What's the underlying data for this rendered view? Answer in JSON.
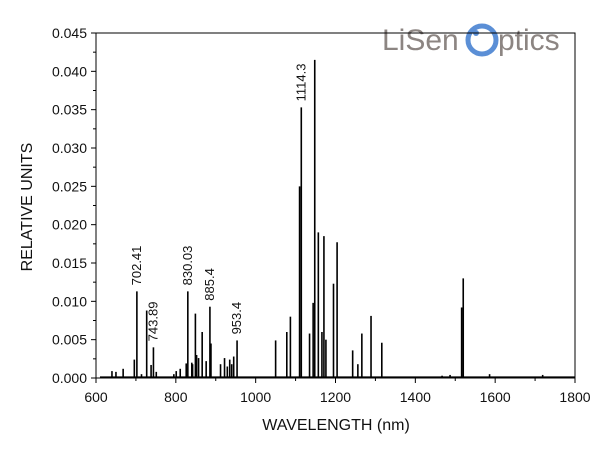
{
  "logo": {
    "text_left": "LiSen",
    "text_right": "ptics",
    "text_color": "#8c8582",
    "accent_color": "#5b8fd6"
  },
  "chart_data": {
    "type": "line",
    "xlabel": "WAVELENGTH (nm)",
    "ylabel": "RELATIVE UNITS",
    "xlim": [
      600,
      1800
    ],
    "ylim": [
      0,
      0.045
    ],
    "x_ticks": [
      600,
      800,
      1000,
      1200,
      1400,
      1600,
      1800
    ],
    "y_ticks": [
      0.0,
      0.005,
      0.01,
      0.015,
      0.02,
      0.025,
      0.03,
      0.035,
      0.04,
      0.045
    ],
    "y_tick_labels": [
      "0.000",
      "0.005",
      "0.010",
      "0.015",
      "0.020",
      "0.025",
      "0.030",
      "0.035",
      "0.040",
      "0.045"
    ],
    "grid": false,
    "line_color": "#000000",
    "peaks": [
      {
        "x": 640,
        "y": 0.0009
      },
      {
        "x": 650,
        "y": 0.0008
      },
      {
        "x": 668,
        "y": 0.0012
      },
      {
        "x": 696,
        "y": 0.0024
      },
      {
        "x": 702.41,
        "y": 0.0113
      },
      {
        "x": 714,
        "y": 0.0005
      },
      {
        "x": 727,
        "y": 0.0088
      },
      {
        "x": 738,
        "y": 0.0017
      },
      {
        "x": 743.89,
        "y": 0.004
      },
      {
        "x": 751,
        "y": 0.0008
      },
      {
        "x": 795,
        "y": 0.0005
      },
      {
        "x": 801,
        "y": 0.0009
      },
      {
        "x": 811,
        "y": 0.0012
      },
      {
        "x": 826,
        "y": 0.0019
      },
      {
        "x": 830.03,
        "y": 0.0113
      },
      {
        "x": 840,
        "y": 0.002
      },
      {
        "x": 842,
        "y": 0.0018
      },
      {
        "x": 849,
        "y": 0.0084
      },
      {
        "x": 852,
        "y": 0.003
      },
      {
        "x": 857,
        "y": 0.0026
      },
      {
        "x": 866,
        "y": 0.006
      },
      {
        "x": 876,
        "y": 0.0022
      },
      {
        "x": 885.4,
        "y": 0.0093
      },
      {
        "x": 888,
        "y": 0.0045
      },
      {
        "x": 912,
        "y": 0.0018
      },
      {
        "x": 922,
        "y": 0.0026
      },
      {
        "x": 929,
        "y": 0.0015
      },
      {
        "x": 935,
        "y": 0.0024
      },
      {
        "x": 940,
        "y": 0.0018
      },
      {
        "x": 945,
        "y": 0.0028
      },
      {
        "x": 953.4,
        "y": 0.0049
      },
      {
        "x": 1050,
        "y": 0.0049
      },
      {
        "x": 1078,
        "y": 0.006
      },
      {
        "x": 1087,
        "y": 0.008
      },
      {
        "x": 1110,
        "y": 0.025
      },
      {
        "x": 1114.3,
        "y": 0.0353
      },
      {
        "x": 1135,
        "y": 0.0058
      },
      {
        "x": 1144,
        "y": 0.0098
      },
      {
        "x": 1148,
        "y": 0.0415
      },
      {
        "x": 1157,
        "y": 0.019
      },
      {
        "x": 1166,
        "y": 0.006
      },
      {
        "x": 1171,
        "y": 0.0185
      },
      {
        "x": 1176,
        "y": 0.005
      },
      {
        "x": 1195,
        "y": 0.0123
      },
      {
        "x": 1204,
        "y": 0.0177
      },
      {
        "x": 1243,
        "y": 0.0036
      },
      {
        "x": 1256,
        "y": 0.0018
      },
      {
        "x": 1266,
        "y": 0.0058
      },
      {
        "x": 1289,
        "y": 0.0081
      },
      {
        "x": 1316,
        "y": 0.0046
      },
      {
        "x": 1467,
        "y": 0.0003
      },
      {
        "x": 1487,
        "y": 0.0004
      },
      {
        "x": 1516,
        "y": 0.0092
      },
      {
        "x": 1520,
        "y": 0.013
      },
      {
        "x": 1586,
        "y": 0.0005
      },
      {
        "x": 1719,
        "y": 0.0004
      }
    ],
    "annotations": [
      {
        "label": "702.41",
        "x": 702.41,
        "y": 0.0113
      },
      {
        "label": "743.89",
        "x": 743.89,
        "y": 0.004
      },
      {
        "label": "830.03",
        "x": 830.03,
        "y": 0.0113
      },
      {
        "label": "885.4",
        "x": 885.4,
        "y": 0.0093
      },
      {
        "label": "953.4",
        "x": 953.4,
        "y": 0.0049
      },
      {
        "label": "1114.3",
        "x": 1114.3,
        "y": 0.0353
      }
    ]
  }
}
